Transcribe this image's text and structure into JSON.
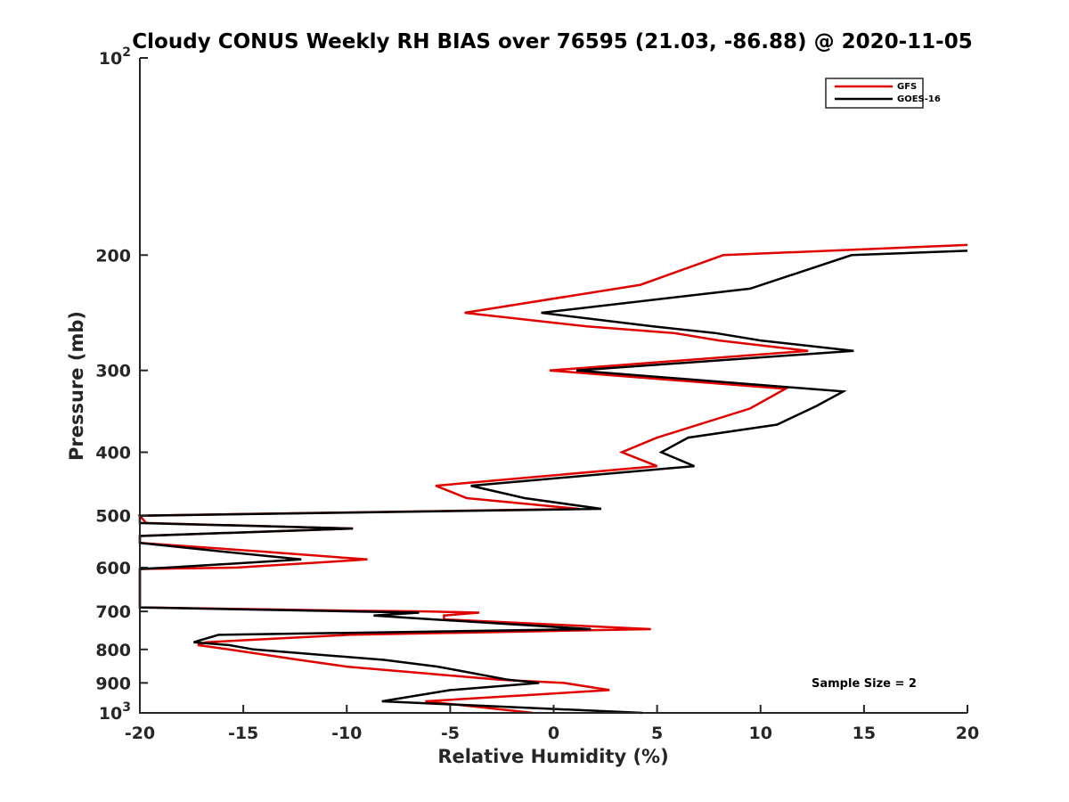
{
  "chart_data": {
    "type": "line",
    "title": "Cloudy CONUS Weekly RH BIAS over 76595 (21.03, -86.88) @ 2020-11-05",
    "xlabel": "Relative Humidity (%)",
    "ylabel": "Pressure (mb)",
    "xlim": [
      -20,
      20
    ],
    "ylim": [
      100,
      1000
    ],
    "yscale": "log",
    "y_reversed": true,
    "grid": false,
    "legend_position": "top-right",
    "x_ticks": [
      "-20",
      "-15",
      "-10",
      "-5",
      "0",
      "5",
      "10",
      "15",
      "20"
    ],
    "x_tick_values": [
      -20,
      -15,
      -10,
      -5,
      0,
      5,
      10,
      15,
      20
    ],
    "y_ticks": [
      {
        "value": 100,
        "base": "10",
        "exp": "2"
      },
      {
        "value": 200,
        "label": "200"
      },
      {
        "value": 300,
        "label": "300"
      },
      {
        "value": 400,
        "label": "400"
      },
      {
        "value": 500,
        "label": "500"
      },
      {
        "value": 600,
        "label": "600"
      },
      {
        "value": 700,
        "label": "700"
      },
      {
        "value": 800,
        "label": "800"
      },
      {
        "value": 900,
        "label": "900"
      },
      {
        "value": 1000,
        "base": "10",
        "exp": "3"
      }
    ],
    "annotation": "Sample Size = 2",
    "series": [
      {
        "name": "GFS",
        "color": "#e00000",
        "points": [
          [
            20,
            193
          ],
          [
            8.2,
            200
          ],
          [
            4.2,
            222
          ],
          [
            -4.3,
            245
          ],
          [
            1.6,
            257
          ],
          [
            5.8,
            263
          ],
          [
            8.0,
            270
          ],
          [
            12.3,
            280
          ],
          [
            -0.2,
            300
          ],
          [
            11.2,
            320
          ],
          [
            9.5,
            343
          ],
          [
            5.0,
            380
          ],
          [
            3.3,
            400
          ],
          [
            5.0,
            420
          ],
          [
            -5.7,
            450
          ],
          [
            -4.2,
            470
          ],
          [
            1.2,
            488
          ],
          [
            -20,
            500
          ],
          [
            -19.7,
            513
          ],
          [
            -9.7,
            523
          ],
          [
            -20,
            537
          ],
          [
            -20,
            550
          ],
          [
            -14.5,
            566
          ],
          [
            -9.0,
            583
          ],
          [
            -15.3,
            600
          ],
          [
            -20,
            603
          ],
          [
            -20,
            690
          ],
          [
            -10.2,
            698
          ],
          [
            -6.2,
            700
          ],
          [
            -3.6,
            703
          ],
          [
            -5.3,
            710
          ],
          [
            -5.3,
            720
          ],
          [
            4.7,
            745
          ],
          [
            -9.9,
            760
          ],
          [
            -16.8,
            780
          ],
          [
            -17.2,
            788
          ],
          [
            -15.7,
            800
          ],
          [
            -12.3,
            830
          ],
          [
            -10.0,
            850
          ],
          [
            -2.6,
            890
          ],
          [
            0.5,
            900
          ],
          [
            2.7,
            923
          ],
          [
            -6.2,
            960
          ],
          [
            -1.0,
            1000
          ]
        ]
      },
      {
        "name": "GOES-16",
        "color": "#000000",
        "points": [
          [
            20,
            197
          ],
          [
            14.4,
            200
          ],
          [
            9.5,
            225
          ],
          [
            -0.6,
            245
          ],
          [
            4.8,
            257
          ],
          [
            7.8,
            263
          ],
          [
            10.0,
            270
          ],
          [
            14.5,
            280
          ],
          [
            1.1,
            300
          ],
          [
            14.0,
            323
          ],
          [
            12.7,
            340
          ],
          [
            10.8,
            363
          ],
          [
            6.5,
            380
          ],
          [
            5.2,
            400
          ],
          [
            6.8,
            420
          ],
          [
            -4.0,
            450
          ],
          [
            -1.4,
            470
          ],
          [
            2.3,
            488
          ],
          [
            -20,
            500
          ],
          [
            -20,
            513
          ],
          [
            -9.7,
            523
          ],
          [
            -20,
            537
          ],
          [
            -20,
            550
          ],
          [
            -16.3,
            566
          ],
          [
            -12.2,
            583
          ],
          [
            -18.6,
            600
          ],
          [
            -20,
            603
          ],
          [
            -20,
            690
          ],
          [
            -9.8,
            700
          ],
          [
            -6.5,
            703
          ],
          [
            -8.7,
            710
          ],
          [
            -5.8,
            720
          ],
          [
            1.8,
            745
          ],
          [
            -16.2,
            760
          ],
          [
            -17.4,
            780
          ],
          [
            -15.7,
            788
          ],
          [
            -14.5,
            800
          ],
          [
            -8.2,
            830
          ],
          [
            -5.6,
            850
          ],
          [
            -2.2,
            890
          ],
          [
            -0.7,
            900
          ],
          [
            -5.0,
            923
          ],
          [
            -8.3,
            960
          ],
          [
            4.3,
            1000
          ]
        ]
      }
    ]
  }
}
